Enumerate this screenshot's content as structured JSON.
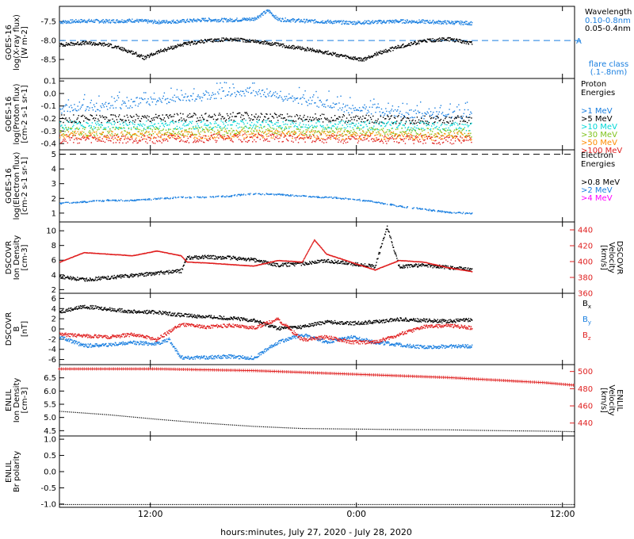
{
  "colors": {
    "black": "#000000",
    "blue": "#1a7fe0",
    "cyan": "#00d7d7",
    "green": "#7fc31c",
    "orange": "#ff8c00",
    "red": "#e02020",
    "magenta": "#ff00ff"
  },
  "x_axis": {
    "title": "hours:minutes, July 27, 2020 - July 28, 2020",
    "range_hours": [
      0,
      42.5
    ],
    "ticks": [
      {
        "hour": 7.5,
        "label": "12:00"
      },
      {
        "hour": 24.5,
        "label": "0:00"
      },
      {
        "hour": 41.5,
        "label": "12:00"
      }
    ]
  },
  "chart_data": [
    {
      "type": "scatter",
      "panel": "goes_xray",
      "ylabel_lines": [
        "GOES-16",
        "log(X-ray flux)",
        "[W m-2]"
      ],
      "ylim": [
        -9.0,
        -7.1
      ],
      "y_ticks": [
        "-7.5",
        "-8.0",
        "-8.5"
      ],
      "threshold": {
        "value": -8.0,
        "label": "A"
      },
      "legend_title": "Wavelength",
      "legend": [
        {
          "label": "0.10-0.8nm",
          "color": "#1a7fe0"
        },
        {
          "label": "0.05-0.4nm",
          "color": "#000000"
        }
      ],
      "note_lines": [
        "flare class",
        "(.1-.8nm)"
      ],
      "series": [
        {
          "name": "0.10-0.8nm",
          "color": "#1a7fe0",
          "x": [
            0,
            2,
            4,
            6,
            8,
            10,
            12,
            14,
            16,
            17.2,
            18,
            20,
            22,
            24,
            26,
            28,
            30,
            32,
            34
          ],
          "y": [
            -7.5,
            -7.47,
            -7.48,
            -7.46,
            -7.5,
            -7.48,
            -7.44,
            -7.45,
            -7.42,
            -7.2,
            -7.43,
            -7.47,
            -7.49,
            -7.52,
            -7.5,
            -7.48,
            -7.49,
            -7.51,
            -7.53
          ]
        },
        {
          "name": "0.05-0.4nm",
          "color": "#000000",
          "x": [
            0,
            2,
            4,
            6,
            7,
            8,
            10,
            12,
            14,
            16,
            18,
            20,
            22,
            24,
            25,
            26,
            28,
            30,
            32,
            34
          ],
          "y": [
            -8.1,
            -8.05,
            -8.1,
            -8.3,
            -8.45,
            -8.3,
            -8.1,
            -8.0,
            -7.95,
            -8.0,
            -8.1,
            -8.2,
            -8.3,
            -8.45,
            -8.5,
            -8.35,
            -8.15,
            -8.0,
            -7.95,
            -8.05
          ]
        }
      ]
    },
    {
      "type": "scatter",
      "panel": "goes_proton",
      "ylabel_lines": [
        "GOES-16",
        "log(Proton flux)",
        "[cm-2 s-1 sr-1]"
      ],
      "ylim": [
        -0.45,
        0.12
      ],
      "y_ticks": [
        "0.1",
        "0.0",
        "-0.1",
        "-0.2",
        "-0.3",
        "-0.4"
      ],
      "legend_title_lines": [
        "Proton",
        "Energies"
      ],
      "legend": [
        {
          "label": ">1 MeV",
          "color": "#1a7fe0"
        },
        {
          "label": ">5 MeV",
          "color": "#000000"
        },
        {
          "label": ">10 MeV",
          "color": "#00d7d7"
        },
        {
          "label": ">30 MeV",
          "color": "#7fc31c"
        },
        {
          "label": ">50 MeV",
          "color": "#ff8c00"
        },
        {
          "label": ">100 MeV",
          "color": "#e02020"
        }
      ],
      "series": [
        {
          "name": ">1 MeV",
          "color": "#1a7fe0",
          "x": [
            0,
            4,
            8,
            12,
            16,
            20,
            24,
            28,
            32,
            34
          ],
          "y": [
            -0.12,
            -0.1,
            -0.05,
            -0.02,
            0.02,
            -0.05,
            -0.12,
            -0.15,
            -0.18,
            -0.16
          ]
        },
        {
          "name": ">5 MeV",
          "color": "#000000",
          "x": [
            0,
            8,
            16,
            24,
            34
          ],
          "y": [
            -0.2,
            -0.19,
            -0.18,
            -0.2,
            -0.21
          ]
        },
        {
          "name": ">10 MeV",
          "color": "#00d7d7",
          "x": [
            0,
            8,
            16,
            24,
            34
          ],
          "y": [
            -0.25,
            -0.25,
            -0.24,
            -0.25,
            -0.26
          ]
        },
        {
          "name": ">30 MeV",
          "color": "#7fc31c",
          "x": [
            0,
            8,
            16,
            24,
            34
          ],
          "y": [
            -0.3,
            -0.3,
            -0.29,
            -0.3,
            -0.31
          ]
        },
        {
          "name": ">50 MeV",
          "color": "#ff8c00",
          "x": [
            0,
            8,
            16,
            24,
            34
          ],
          "y": [
            -0.33,
            -0.33,
            -0.32,
            -0.33,
            -0.34
          ]
        },
        {
          "name": ">100 MeV",
          "color": "#e02020",
          "x": [
            0,
            8,
            16,
            24,
            34
          ],
          "y": [
            -0.36,
            -0.36,
            -0.35,
            -0.36,
            -0.37
          ]
        }
      ]
    },
    {
      "type": "scatter",
      "panel": "goes_electron",
      "ylabel_lines": [
        "GOES-16",
        "log(Electron flux)",
        "[cm-2 s-1 sr-1]"
      ],
      "ylim": [
        0.4,
        5.3
      ],
      "y_ticks": [
        "5",
        "4",
        "3",
        "2",
        "1"
      ],
      "threshold": {
        "value": 5.0
      },
      "legend_title_lines": [
        "Electron",
        "Energies"
      ],
      "legend": [
        {
          "label": ">0.8 MeV",
          "color": "#000000"
        },
        {
          "label": ">2 MeV",
          "color": "#1a7fe0"
        },
        {
          "label": ">4 MeV",
          "color": "#ff00ff"
        }
      ],
      "series": [
        {
          "name": ">2 MeV",
          "color": "#1a7fe0",
          "x": [
            0,
            2,
            4,
            6,
            8,
            10,
            12,
            14,
            16,
            18,
            20,
            22,
            24,
            26,
            28,
            30,
            32,
            34
          ],
          "y": [
            1.7,
            1.8,
            1.9,
            1.9,
            2.0,
            2.1,
            2.1,
            2.2,
            2.35,
            2.3,
            2.2,
            2.1,
            2.0,
            1.8,
            1.5,
            1.3,
            1.1,
            1.0
          ]
        }
      ]
    },
    {
      "type": "scatter",
      "panel": "dscovr_plasma",
      "ylabel_lines": [
        "DSCOVR",
        "Ion Density",
        "[cm-3]"
      ],
      "ylim": [
        1.5,
        11.2
      ],
      "y_ticks": [
        "10",
        "8",
        "6",
        "4",
        "2"
      ],
      "y2label_lines": [
        "DSCOVR",
        "Velocity",
        "[km/s]"
      ],
      "y2lim": [
        360,
        450
      ],
      "y2_ticks": [
        "440",
        "420",
        "400",
        "380",
        "360"
      ],
      "series": [
        {
          "name": "Ion Density",
          "color": "#000000",
          "x": [
            0,
            2,
            4,
            6,
            8,
            10,
            10.5,
            12,
            14,
            16,
            18,
            20,
            22,
            24,
            26,
            27,
            28,
            30,
            32,
            34
          ],
          "y": [
            3.8,
            3.4,
            3.7,
            4.0,
            4.3,
            4.6,
            6.4,
            6.5,
            6.4,
            6.1,
            5.4,
            5.6,
            6.0,
            5.6,
            5.2,
            10.5,
            5.2,
            5.4,
            5.1,
            4.8
          ]
        },
        {
          "name": "Velocity",
          "color": "#e02020",
          "x": [
            0,
            2,
            4,
            6,
            8,
            10,
            10.5,
            12,
            14,
            16,
            18,
            20,
            21,
            22,
            24,
            26,
            28,
            30,
            32,
            34
          ],
          "y": [
            400,
            412,
            410,
            408,
            414,
            408,
            400,
            399,
            397,
            395,
            402,
            400,
            428,
            410,
            400,
            390,
            402,
            400,
            393,
            388
          ]
        }
      ]
    },
    {
      "type": "scatter",
      "panel": "dscovr_mag",
      "ylabel_lines": [
        "DSCOVR",
        "B",
        "[nT]"
      ],
      "ylim": [
        -7.0,
        7.0
      ],
      "y_ticks": [
        "6",
        "4",
        "2",
        "0",
        "-2",
        "-4",
        "-6"
      ],
      "legend": [
        {
          "label": "B",
          "sub": "x",
          "color": "#000000"
        },
        {
          "label": "B",
          "sub": "y",
          "color": "#1a7fe0"
        },
        {
          "label": "B",
          "sub": "z",
          "color": "#e02020"
        }
      ],
      "series": [
        {
          "name": "Bx",
          "color": "#000000",
          "x": [
            0,
            2,
            4,
            6,
            8,
            10,
            12,
            14,
            16,
            18,
            20,
            22,
            24,
            26,
            28,
            30,
            32,
            34
          ],
          "y": [
            3.5,
            4.5,
            4.0,
            3.5,
            3.4,
            2.8,
            2.5,
            2.2,
            1.8,
            0.2,
            0.5,
            1.5,
            1.2,
            1.5,
            2.0,
            1.8,
            1.6,
            1.9
          ]
        },
        {
          "name": "By",
          "color": "#1a7fe0",
          "x": [
            0,
            2,
            4,
            6,
            8,
            9,
            10,
            12,
            14,
            16,
            18,
            20,
            22,
            24,
            26,
            28,
            30,
            32,
            34
          ],
          "y": [
            -1.5,
            -3.2,
            -3.0,
            -2.6,
            -2.8,
            -2.0,
            -5.5,
            -5.5,
            -5.3,
            -5.6,
            -2.5,
            -1.0,
            -2.5,
            -1.5,
            -2.5,
            -3.0,
            -3.5,
            -3.3,
            -3.3
          ]
        },
        {
          "name": "Bz",
          "color": "#e02020",
          "x": [
            0,
            2,
            4,
            6,
            8,
            10,
            12,
            14,
            16,
            18,
            20,
            22,
            24,
            26,
            28,
            30,
            32,
            34
          ],
          "y": [
            -1.0,
            -1.2,
            -1.5,
            -1.0,
            -2.0,
            1.0,
            0.5,
            0.8,
            0.3,
            2.0,
            -2.0,
            -1.5,
            -2.5,
            -2.5,
            -1.0,
            0.5,
            0.8,
            0.3
          ]
        }
      ]
    },
    {
      "type": "line",
      "panel": "enlil_plasma",
      "ylabel_lines": [
        "ENLIL",
        "Ion Density",
        "[cm-3]"
      ],
      "ylim": [
        4.3,
        7.0
      ],
      "y_ticks": [
        "6.5",
        "6.0",
        "5.5",
        "5.0",
        "4.5"
      ],
      "y2label_lines": [
        "ENLIL",
        "Velocity",
        "[km/s]"
      ],
      "y2lim": [
        425,
        508
      ],
      "y2_ticks": [
        "500",
        "480",
        "460",
        "440"
      ],
      "series": [
        {
          "name": "Ion Density",
          "color": "#000000",
          "x": [
            0,
            4,
            8,
            12,
            16,
            20,
            24,
            28,
            32,
            36,
            40,
            42.5
          ],
          "y": [
            5.25,
            5.12,
            4.95,
            4.8,
            4.68,
            4.6,
            4.58,
            4.56,
            4.55,
            4.52,
            4.5,
            4.48
          ]
        },
        {
          "name": "Velocity",
          "color": "#e02020",
          "x": [
            0,
            4,
            8,
            12,
            16,
            20,
            24,
            28,
            32,
            36,
            40,
            42.5
          ],
          "y": [
            503,
            503,
            503,
            502,
            501,
            499,
            497,
            495,
            493,
            490,
            487,
            484
          ]
        }
      ]
    },
    {
      "type": "line",
      "panel": "enlil_polarity",
      "ylabel_lines": [
        "ENLIL",
        "Br polarity"
      ],
      "ylim": [
        -1.1,
        1.1
      ],
      "y_ticks": [
        "1.0",
        "0.5",
        "0.0",
        "-0.5",
        "-1.0"
      ],
      "series": [
        {
          "name": "Br polarity",
          "color": "#000000",
          "x": [
            0,
            42.5
          ],
          "y": [
            -1.0,
            -1.0
          ]
        }
      ]
    }
  ]
}
